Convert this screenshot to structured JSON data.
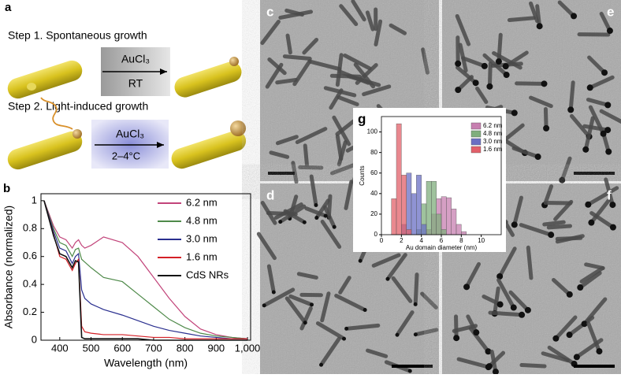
{
  "panels": {
    "a": "a",
    "b": "b",
    "c": "c",
    "d": "d",
    "e": "e",
    "f": "f",
    "g": "g"
  },
  "scheme": {
    "step1": "Step 1. Spontaneous growth",
    "step2": "Step 2. Light-induced growth",
    "reagent1": "AuCl₃",
    "condition1": "RT",
    "reagent2": "AuCl₃",
    "condition2": "2–4°C"
  },
  "chart_data": [
    {
      "type": "line",
      "xlabel": "Wavelength (nm)",
      "ylabel": "Absorbance (normalized)",
      "x": [
        350,
        380,
        400,
        420,
        440,
        450,
        460,
        470,
        480,
        500,
        540,
        600,
        650,
        700,
        750,
        800,
        850,
        900,
        950,
        1000
      ],
      "xlim": [
        340,
        1010
      ],
      "ylim": [
        0,
        1.05
      ],
      "xticks": [
        400,
        500,
        600,
        700,
        800,
        900,
        {
          "value": 1000,
          "label": "1,000"
        }
      ],
      "yticks": [
        0,
        0.2,
        0.4,
        0.6,
        0.8,
        1
      ],
      "series": [
        {
          "name": "6.2 nm",
          "color": "#c2447a",
          "values": [
            1.0,
            0.82,
            0.74,
            0.72,
            0.66,
            0.7,
            0.72,
            0.68,
            0.66,
            0.68,
            0.74,
            0.7,
            0.6,
            0.45,
            0.3,
            0.17,
            0.08,
            0.04,
            0.02,
            0.01
          ]
        },
        {
          "name": "4.8 nm",
          "color": "#4f8a4a",
          "values": [
            1.0,
            0.8,
            0.7,
            0.68,
            0.6,
            0.65,
            0.66,
            0.58,
            0.56,
            0.52,
            0.45,
            0.42,
            0.33,
            0.24,
            0.15,
            0.09,
            0.05,
            0.03,
            0.02,
            0.01
          ]
        },
        {
          "name": "3.0 nm",
          "color": "#2a2f8f",
          "values": [
            1.0,
            0.78,
            0.66,
            0.64,
            0.55,
            0.6,
            0.62,
            0.36,
            0.3,
            0.26,
            0.22,
            0.18,
            0.14,
            0.1,
            0.07,
            0.05,
            0.03,
            0.02,
            0.01,
            0.01
          ]
        },
        {
          "name": "1.6 nm",
          "color": "#d42027",
          "values": [
            1.0,
            0.76,
            0.6,
            0.58,
            0.5,
            0.55,
            0.58,
            0.1,
            0.06,
            0.05,
            0.04,
            0.04,
            0.03,
            0.02,
            0.02,
            0.01,
            0.01,
            0.01,
            0.01,
            0.01
          ]
        },
        {
          "name": "CdS NRs",
          "color": "#111111",
          "values": [
            1.0,
            0.75,
            0.62,
            0.6,
            0.52,
            0.57,
            0.56,
            0.02,
            0.01,
            0.01,
            0.01,
            0.01,
            0.01,
            0,
            0,
            0,
            0,
            0,
            0,
            0
          ]
        }
      ]
    },
    {
      "type": "histogram",
      "xlabel": "Au domain diameter (nm)",
      "ylabel": "Counts",
      "bins": [
        0,
        0.5,
        1,
        1.5,
        2,
        2.5,
        3,
        3.5,
        4,
        4.5,
        5,
        5.5,
        6,
        6.5,
        7,
        7.5,
        8,
        8.5,
        9,
        9.5,
        10
      ],
      "xlim": [
        0,
        12
      ],
      "ylim": [
        0,
        115
      ],
      "xticks": [
        0,
        2,
        4,
        6,
        8,
        10
      ],
      "yticks": [
        0,
        20,
        40,
        60,
        80,
        100
      ],
      "series": [
        {
          "name": "6.2 nm",
          "color": "#c77fb0",
          "values": [
            0,
            0,
            0,
            0,
            0,
            0,
            0,
            0,
            0,
            5,
            20,
            35,
            37,
            36,
            25,
            10,
            3,
            0,
            0,
            0
          ]
        },
        {
          "name": "4.8 nm",
          "color": "#7fae7c",
          "values": [
            0,
            0,
            0,
            0,
            0,
            0,
            0,
            5,
            30,
            52,
            52,
            20,
            5,
            0,
            0,
            0,
            0,
            0,
            0,
            0
          ]
        },
        {
          "name": "3.0 nm",
          "color": "#6a6fc4",
          "values": [
            0,
            0,
            0,
            0,
            10,
            60,
            40,
            58,
            10,
            0,
            0,
            0,
            0,
            0,
            0,
            0,
            0,
            0,
            0,
            0
          ]
        },
        {
          "name": "1.6 nm",
          "color": "#e2606a",
          "values": [
            0,
            0,
            35,
            108,
            58,
            5,
            0,
            0,
            0,
            0,
            0,
            0,
            0,
            0,
            0,
            0,
            0,
            0,
            0,
            0
          ]
        }
      ]
    }
  ]
}
